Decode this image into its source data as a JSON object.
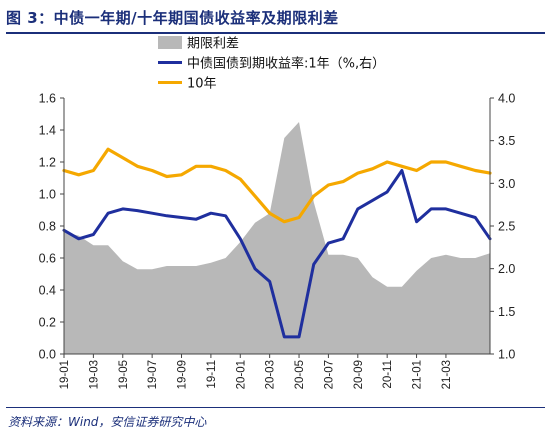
{
  "title": "图 3：中债一年期/十年期国债收益率及期限利差",
  "source": "资料来源：Wind，安信证券研究中心",
  "chart_data": {
    "type": "line",
    "y_left": {
      "min": 0.0,
      "max": 1.6,
      "step": 0.2,
      "tick_labels": [
        "0.0",
        "0.2",
        "0.4",
        "0.6",
        "0.8",
        "1.0",
        "1.2",
        "1.4",
        "1.6"
      ]
    },
    "y_right": {
      "min": 1.0,
      "max": 4.0,
      "step": 0.5,
      "tick_labels": [
        "1.0",
        "1.5",
        "2.0",
        "2.5",
        "3.0",
        "3.5",
        "4.0"
      ]
    },
    "x_tick_labels": [
      "19-01",
      "19-03",
      "19-05",
      "19-07",
      "19-09",
      "19-11",
      "20-01",
      "20-03",
      "20-05",
      "20-07",
      "20-09",
      "20-11",
      "21-01",
      "21-03"
    ],
    "x_range": [
      "2019-01",
      "2021-06"
    ],
    "legend_position": "top-left",
    "grid": false,
    "series": [
      {
        "name": "期限利差",
        "kind": "area",
        "axis": "left",
        "color": "#b8b8b8",
        "x": [
          "2019-01",
          "2019-02",
          "2019-03",
          "2019-04",
          "2019-05",
          "2019-06",
          "2019-07",
          "2019-08",
          "2019-09",
          "2019-10",
          "2019-11",
          "2019-12",
          "2020-01",
          "2020-02",
          "2020-03",
          "2020-04",
          "2020-05",
          "2020-06",
          "2020-07",
          "2020-08",
          "2020-09",
          "2020-10",
          "2020-11",
          "2020-12",
          "2021-01",
          "2021-02",
          "2021-03",
          "2021-04",
          "2021-05",
          "2021-06"
        ],
        "values": [
          0.76,
          0.74,
          0.68,
          0.68,
          0.58,
          0.53,
          0.53,
          0.55,
          0.55,
          0.55,
          0.57,
          0.6,
          0.7,
          0.82,
          0.88,
          1.35,
          1.45,
          0.95,
          0.62,
          0.62,
          0.6,
          0.48,
          0.42,
          0.42,
          0.52,
          0.6,
          0.62,
          0.6,
          0.6,
          0.63
        ]
      },
      {
        "name": "中债国债到期收益率:1年（%,右）",
        "kind": "line",
        "axis": "right",
        "color": "#1f2f9e",
        "x": [
          "2019-01",
          "2019-02",
          "2019-03",
          "2019-04",
          "2019-05",
          "2019-06",
          "2019-07",
          "2019-08",
          "2019-09",
          "2019-10",
          "2019-11",
          "2019-12",
          "2020-01",
          "2020-02",
          "2020-03",
          "2020-04",
          "2020-05",
          "2020-06",
          "2020-07",
          "2020-08",
          "2020-09",
          "2020-10",
          "2020-11",
          "2020-12",
          "2021-01",
          "2021-02",
          "2021-03",
          "2021-04",
          "2021-05",
          "2021-06"
        ],
        "values": [
          2.45,
          2.35,
          2.4,
          2.65,
          2.7,
          2.68,
          2.65,
          2.62,
          2.6,
          2.58,
          2.65,
          2.62,
          2.35,
          2.0,
          1.85,
          1.2,
          1.2,
          2.05,
          2.3,
          2.35,
          2.7,
          2.8,
          2.9,
          3.15,
          2.55,
          2.7,
          2.7,
          2.65,
          2.6,
          2.35
        ]
      },
      {
        "name": "10年",
        "kind": "line",
        "axis": "right",
        "color": "#f5a800",
        "x": [
          "2019-01",
          "2019-02",
          "2019-03",
          "2019-04",
          "2019-05",
          "2019-06",
          "2019-07",
          "2019-08",
          "2019-09",
          "2019-10",
          "2019-11",
          "2019-12",
          "2020-01",
          "2020-02",
          "2020-03",
          "2020-04",
          "2020-05",
          "2020-06",
          "2020-07",
          "2020-08",
          "2020-09",
          "2020-10",
          "2020-11",
          "2020-12",
          "2021-01",
          "2021-02",
          "2021-03",
          "2021-04",
          "2021-05",
          "2021-06"
        ],
        "values": [
          3.15,
          3.1,
          3.15,
          3.4,
          3.3,
          3.2,
          3.15,
          3.08,
          3.1,
          3.2,
          3.2,
          3.15,
          3.05,
          2.85,
          2.65,
          2.55,
          2.6,
          2.85,
          2.98,
          3.02,
          3.12,
          3.17,
          3.25,
          3.2,
          3.15,
          3.25,
          3.25,
          3.2,
          3.15,
          3.12
        ]
      }
    ]
  }
}
